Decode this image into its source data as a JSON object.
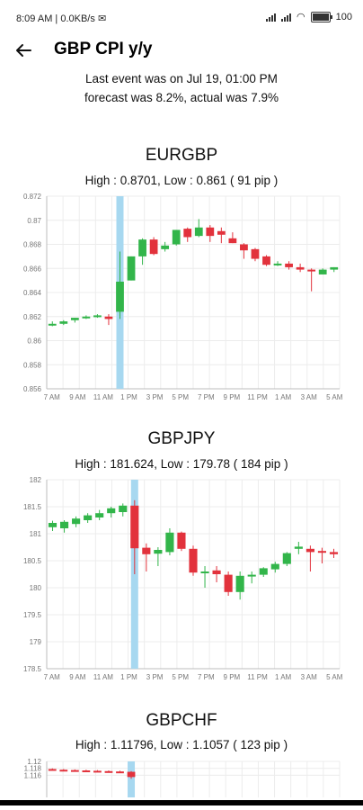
{
  "status": {
    "time": "8:09 AM",
    "network": "0.0KB/s",
    "battery": "100"
  },
  "header": {
    "title": "GBP CPI y/y"
  },
  "event": {
    "line1": "Last event was on Jul 19, 01:00 PM",
    "line2": "forecast was 8.2%, actual was 7.9%"
  },
  "charts": [
    {
      "pair": "EURGBP",
      "highlow": "High : 0.8701, Low : 0.861 ( 91 pip )",
      "chart_data": {
        "type": "candlestick",
        "ylim": [
          0.856,
          0.872
        ],
        "yticks": [
          "0.872",
          "0.87",
          "0.868",
          "0.866",
          "0.864",
          "0.862",
          "0.86",
          "0.858",
          "0.856"
        ],
        "ytick_values": [
          0.872,
          0.87,
          0.868,
          0.866,
          0.864,
          0.862,
          0.86,
          0.858,
          0.856
        ],
        "xticks": [
          "7 AM",
          "9 AM",
          "11 AM",
          "1 PM",
          "3 PM",
          "5 PM",
          "7 PM",
          "9 PM",
          "11 PM",
          "1 AM",
          "3 AM",
          "5 AM"
        ],
        "event_index": 6,
        "candles": [
          {
            "o": 0.8614,
            "h": 0.8616,
            "l": 0.8612,
            "c": 0.8614
          },
          {
            "o": 0.8614,
            "h": 0.8617,
            "l": 0.8613,
            "c": 0.8616
          },
          {
            "o": 0.8617,
            "h": 0.8619,
            "l": 0.8615,
            "c": 0.8619
          },
          {
            "o": 0.8619,
            "h": 0.8621,
            "l": 0.8618,
            "c": 0.862
          },
          {
            "o": 0.862,
            "h": 0.8622,
            "l": 0.8619,
            "c": 0.8621
          },
          {
            "o": 0.862,
            "h": 0.8622,
            "l": 0.8613,
            "c": 0.8618
          },
          {
            "o": 0.8624,
            "h": 0.8674,
            "l": 0.8618,
            "c": 0.8649
          },
          {
            "o": 0.865,
            "h": 0.867,
            "l": 0.865,
            "c": 0.867
          },
          {
            "o": 0.867,
            "h": 0.8685,
            "l": 0.8663,
            "c": 0.8684
          },
          {
            "o": 0.8684,
            "h": 0.8686,
            "l": 0.8671,
            "c": 0.8672
          },
          {
            "o": 0.8676,
            "h": 0.8682,
            "l": 0.8674,
            "c": 0.8679
          },
          {
            "o": 0.868,
            "h": 0.8692,
            "l": 0.8679,
            "c": 0.8692
          },
          {
            "o": 0.8693,
            "h": 0.8694,
            "l": 0.8682,
            "c": 0.8686
          },
          {
            "o": 0.8687,
            "h": 0.8701,
            "l": 0.8686,
            "c": 0.8694
          },
          {
            "o": 0.8694,
            "h": 0.8696,
            "l": 0.8682,
            "c": 0.8687
          },
          {
            "o": 0.8691,
            "h": 0.8694,
            "l": 0.8681,
            "c": 0.8688
          },
          {
            "o": 0.8685,
            "h": 0.869,
            "l": 0.8681,
            "c": 0.8681
          },
          {
            "o": 0.868,
            "h": 0.8681,
            "l": 0.8668,
            "c": 0.8675
          },
          {
            "o": 0.8676,
            "h": 0.8677,
            "l": 0.8666,
            "c": 0.8668
          },
          {
            "o": 0.867,
            "h": 0.8671,
            "l": 0.8662,
            "c": 0.8663
          },
          {
            "o": 0.8664,
            "h": 0.8666,
            "l": 0.8662,
            "c": 0.8664
          },
          {
            "o": 0.8664,
            "h": 0.8666,
            "l": 0.8659,
            "c": 0.8661
          },
          {
            "o": 0.8661,
            "h": 0.8664,
            "l": 0.8657,
            "c": 0.8659
          },
          {
            "o": 0.8659,
            "h": 0.866,
            "l": 0.8641,
            "c": 0.8658
          },
          {
            "o": 0.8655,
            "h": 0.866,
            "l": 0.8655,
            "c": 0.8659
          },
          {
            "o": 0.8659,
            "h": 0.8661,
            "l": 0.8657,
            "c": 0.8661
          }
        ]
      }
    },
    {
      "pair": "GBPJPY",
      "highlow": "High : 181.624, Low : 179.78 ( 184 pip )",
      "chart_data": {
        "type": "candlestick",
        "ylim": [
          178.5,
          182
        ],
        "yticks": [
          "182",
          "181.5",
          "181",
          "180.5",
          "180",
          "179.5",
          "179",
          "178.5"
        ],
        "ytick_values": [
          182,
          181.5,
          181,
          180.5,
          180,
          179.5,
          179,
          178.5
        ],
        "xticks": [
          "7 AM",
          "9 AM",
          "11 AM",
          "1 PM",
          "3 PM",
          "5 PM",
          "7 PM",
          "9 PM",
          "11 PM",
          "1 AM",
          "3 AM",
          "5 AM"
        ],
        "event_index": 7,
        "candles": [
          {
            "o": 181.12,
            "h": 181.24,
            "l": 181.05,
            "c": 181.2
          },
          {
            "o": 181.1,
            "h": 181.25,
            "l": 181.02,
            "c": 181.22
          },
          {
            "o": 181.18,
            "h": 181.32,
            "l": 181.12,
            "c": 181.28
          },
          {
            "o": 181.25,
            "h": 181.38,
            "l": 181.2,
            "c": 181.34
          },
          {
            "o": 181.3,
            "h": 181.44,
            "l": 181.25,
            "c": 181.38
          },
          {
            "o": 181.38,
            "h": 181.5,
            "l": 181.3,
            "c": 181.47
          },
          {
            "o": 181.4,
            "h": 181.56,
            "l": 181.32,
            "c": 181.52
          },
          {
            "o": 181.52,
            "h": 181.62,
            "l": 180.25,
            "c": 180.73
          },
          {
            "o": 180.74,
            "h": 180.82,
            "l": 180.3,
            "c": 180.62
          },
          {
            "o": 180.63,
            "h": 180.75,
            "l": 180.4,
            "c": 180.7
          },
          {
            "o": 180.66,
            "h": 181.1,
            "l": 180.6,
            "c": 181.02
          },
          {
            "o": 181.02,
            "h": 181.04,
            "l": 180.68,
            "c": 180.72
          },
          {
            "o": 180.72,
            "h": 180.78,
            "l": 180.22,
            "c": 180.28
          },
          {
            "o": 180.28,
            "h": 180.4,
            "l": 180.0,
            "c": 180.3
          },
          {
            "o": 180.32,
            "h": 180.4,
            "l": 180.1,
            "c": 180.25
          },
          {
            "o": 180.24,
            "h": 180.3,
            "l": 179.85,
            "c": 179.92
          },
          {
            "o": 179.92,
            "h": 180.3,
            "l": 179.78,
            "c": 180.22
          },
          {
            "o": 180.22,
            "h": 180.3,
            "l": 180.08,
            "c": 180.24
          },
          {
            "o": 180.24,
            "h": 180.38,
            "l": 180.2,
            "c": 180.36
          },
          {
            "o": 180.34,
            "h": 180.48,
            "l": 180.28,
            "c": 180.44
          },
          {
            "o": 180.44,
            "h": 180.66,
            "l": 180.4,
            "c": 180.64
          },
          {
            "o": 180.72,
            "h": 180.85,
            "l": 180.62,
            "c": 180.76
          },
          {
            "o": 180.72,
            "h": 180.78,
            "l": 180.3,
            "c": 180.66
          },
          {
            "o": 180.68,
            "h": 180.74,
            "l": 180.45,
            "c": 180.66
          },
          {
            "o": 180.66,
            "h": 180.72,
            "l": 180.55,
            "c": 180.62
          }
        ]
      }
    },
    {
      "pair": "GBPCHF",
      "highlow": "High : 1.11796, Low : 1.1057 ( 123 pip )",
      "chart_data": {
        "type": "candlestick",
        "ylim": [
          1.106,
          1.12
        ],
        "yticks": [
          "1.12",
          "1.118",
          "1.116"
        ],
        "ytick_values": [
          1.12,
          1.118,
          1.116
        ],
        "xticks": [],
        "event_index": 7,
        "candles": [
          {
            "o": 1.1178,
            "h": 1.118,
            "l": 1.1174,
            "c": 1.1176
          },
          {
            "o": 1.1176,
            "h": 1.1178,
            "l": 1.1172,
            "c": 1.1174
          },
          {
            "o": 1.1175,
            "h": 1.1177,
            "l": 1.1172,
            "c": 1.1173
          },
          {
            "o": 1.1174,
            "h": 1.1176,
            "l": 1.1171,
            "c": 1.1172
          },
          {
            "o": 1.1173,
            "h": 1.1175,
            "l": 1.117,
            "c": 1.1171
          },
          {
            "o": 1.1172,
            "h": 1.1174,
            "l": 1.1169,
            "c": 1.117
          },
          {
            "o": 1.1171,
            "h": 1.1173,
            "l": 1.1168,
            "c": 1.1169
          },
          {
            "o": 1.117,
            "h": 1.1172,
            "l": 1.115,
            "c": 1.1155
          }
        ]
      }
    }
  ],
  "colors": {
    "up": "#32b54a",
    "down": "#e2323c",
    "event": "#a7d8f0",
    "grid": "#ececec",
    "axis": "#bdbdbd"
  }
}
